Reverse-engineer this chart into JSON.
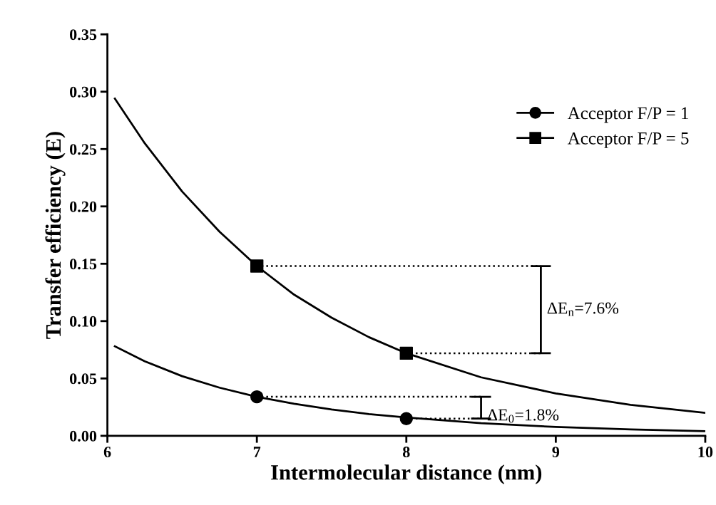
{
  "chart_data": {
    "type": "line",
    "xlabel": "Intermolecular distance (nm)",
    "ylabel": "Transfer efficiency (E)",
    "xlim": [
      6,
      10
    ],
    "xticks": [
      6,
      7,
      8,
      9,
      10
    ],
    "ylim": [
      0,
      0.35
    ],
    "yticks": [
      {
        "value": 0,
        "label": "0.00"
      },
      {
        "value": 0.05,
        "label": "0.05"
      },
      {
        "value": 0.1,
        "label": "0.10"
      },
      {
        "value": 0.15,
        "label": "0.15"
      },
      {
        "value": 0.2,
        "label": "0.20"
      },
      {
        "value": 0.25,
        "label": "0.25"
      },
      {
        "value": 0.3,
        "label": "0.30"
      },
      {
        "value": 0.35,
        "label": "0.35"
      }
    ],
    "grid": false,
    "legend": "top right",
    "series": [
      {
        "color": "#000000",
        "line_style": "solid",
        "x": [
          6.05,
          6.25,
          6.5,
          6.75,
          7,
          7.25,
          7.5,
          7.75,
          8,
          8.5,
          9,
          9.5,
          10
        ],
        "values": [
          0.294,
          0.255,
          0.213,
          0.178,
          0.148,
          0.123,
          0.103,
          0.086,
          0.072,
          0.051,
          0.037,
          0.027,
          0.02
        ]
      },
      {
        "color": "#000000",
        "line_style": "solid",
        "x": [
          6.05,
          6.25,
          6.5,
          6.75,
          7,
          7.25,
          7.5,
          7.75,
          8,
          8.5,
          9,
          9.5,
          10
        ],
        "values": [
          0.078,
          0.065,
          0.052,
          0.042,
          0.034,
          0.028,
          0.023,
          0.019,
          0.016,
          0.011,
          0.0077,
          0.0056,
          0.0041
        ]
      },
      {
        "color": "#000000",
        "line_style": "dotted",
        "x": [
          7,
          8.9
        ],
        "values": [
          0.148,
          0.148
        ]
      },
      {
        "color": "#000000",
        "line_style": "dotted",
        "x": [
          8,
          8.9
        ],
        "values": [
          0.072,
          0.072
        ]
      },
      {
        "color": "#000000",
        "line_style": "dotted",
        "x": [
          7,
          8.5
        ],
        "values": [
          0.034,
          0.034
        ]
      },
      {
        "color": "#000000",
        "line_style": "dotted",
        "x": [
          8,
          8.5
        ],
        "values": [
          0.015,
          0.015
        ]
      },
      {
        "type": "scatter",
        "name": "Acceptor F/P = 1",
        "color": "#000000",
        "marker": "circle",
        "x": [
          7,
          8
        ],
        "values": [
          0.034,
          0.015
        ]
      },
      {
        "type": "scatter",
        "name": "Acceptor F/P = 5",
        "color": "#000000",
        "marker": "square",
        "x": [
          7,
          8
        ],
        "values": [
          0.148,
          0.072
        ]
      }
    ],
    "annotations": [
      "ΔE$_{n}$=7.6%",
      "ΔE$_{0}$=1.8%"
    ]
  }
}
